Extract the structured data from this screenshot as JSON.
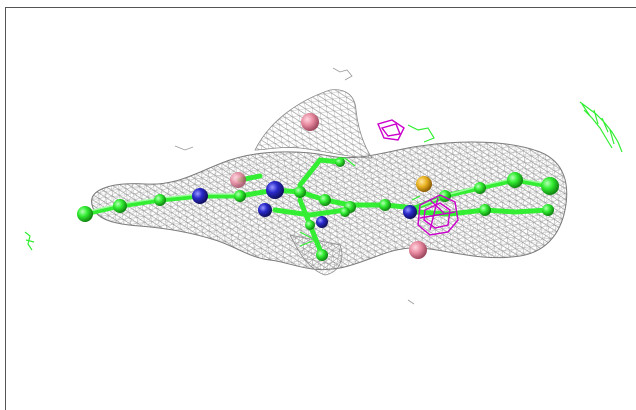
{
  "viewer": {
    "background_color": "#ffffff",
    "frame_color": "#555555"
  },
  "colors": {
    "density_mesh": "#8a8a8a",
    "carbon": "#33ee33",
    "nitrogen": "#2a2acc",
    "oxygen": "#e88aa0",
    "sulfur": "#e8b020",
    "difference_density": "#cc00cc",
    "green_fragments": "#33ee33"
  },
  "icons": {
    "mesh": "electron-density-mesh-icon",
    "molecule": "ball-and-stick-molecule-icon"
  }
}
